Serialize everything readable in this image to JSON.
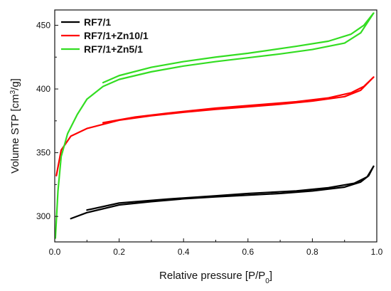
{
  "chart_data": {
    "type": "line",
    "xlabel": {
      "main": "Relative pressure [P/P",
      "subscript": "0",
      "suffix": "]"
    },
    "ylabel": {
      "main": "Volume STP [cm",
      "superscript": "3",
      "suffix": "/g]"
    },
    "xlim": [
      0.0,
      1.0
    ],
    "ylim": [
      280,
      462
    ],
    "x_ticks": [
      "0.0",
      "0.2",
      "0.4",
      "0.6",
      "0.8",
      "1.0"
    ],
    "y_ticks": [
      "300",
      "350",
      "400",
      "450"
    ],
    "legend_position": "top-left",
    "grid": false,
    "series": [
      {
        "name": "RF7/1",
        "color": "#000000",
        "adsorption": [
          [
            0.05,
            298.3
          ],
          [
            0.1,
            303.0
          ],
          [
            0.2,
            309.0
          ],
          [
            0.3,
            311.6
          ],
          [
            0.4,
            313.8
          ],
          [
            0.5,
            315.4
          ],
          [
            0.6,
            316.7
          ],
          [
            0.7,
            318.0
          ],
          [
            0.8,
            320.0
          ],
          [
            0.9,
            323.0
          ],
          [
            0.95,
            327.0
          ],
          [
            0.975,
            332.0
          ],
          [
            0.99,
            339.3
          ]
        ],
        "desorption": [
          [
            0.99,
            339.3
          ],
          [
            0.97,
            331.0
          ],
          [
            0.93,
            326.0
          ],
          [
            0.85,
            322.5
          ],
          [
            0.75,
            320.0
          ],
          [
            0.6,
            318.0
          ],
          [
            0.5,
            316.2
          ],
          [
            0.35,
            313.6
          ],
          [
            0.2,
            310.5
          ],
          [
            0.1,
            305.0
          ]
        ]
      },
      {
        "name": "RF7/1+Zn10/1",
        "color": "#ff0000",
        "adsorption": [
          [
            0.005,
            332.0
          ],
          [
            0.02,
            352.0
          ],
          [
            0.05,
            363.0
          ],
          [
            0.1,
            369.0
          ],
          [
            0.2,
            375.5
          ],
          [
            0.3,
            379.0
          ],
          [
            0.4,
            381.7
          ],
          [
            0.5,
            384.0
          ],
          [
            0.6,
            386.0
          ],
          [
            0.7,
            388.0
          ],
          [
            0.8,
            390.5
          ],
          [
            0.9,
            394.0
          ],
          [
            0.95,
            399.0
          ],
          [
            0.99,
            409.3
          ]
        ],
        "desorption": [
          [
            0.99,
            409.3
          ],
          [
            0.96,
            402.0
          ],
          [
            0.92,
            397.0
          ],
          [
            0.85,
            393.0
          ],
          [
            0.75,
            390.0
          ],
          [
            0.65,
            388.0
          ],
          [
            0.5,
            385.0
          ],
          [
            0.35,
            381.0
          ],
          [
            0.25,
            378.0
          ],
          [
            0.15,
            373.5
          ]
        ]
      },
      {
        "name": "RF7/1+Zn5/1",
        "color": "#33dd22",
        "adsorption": [
          [
            0.002,
            283.0
          ],
          [
            0.01,
            320.0
          ],
          [
            0.02,
            347.0
          ],
          [
            0.04,
            365.0
          ],
          [
            0.07,
            380.0
          ],
          [
            0.1,
            392.0
          ],
          [
            0.15,
            402.0
          ],
          [
            0.2,
            407.5
          ],
          [
            0.3,
            413.5
          ],
          [
            0.4,
            418.0
          ],
          [
            0.5,
            421.5
          ],
          [
            0.6,
            424.5
          ],
          [
            0.7,
            427.5
          ],
          [
            0.8,
            431.0
          ],
          [
            0.9,
            436.0
          ],
          [
            0.95,
            444.0
          ],
          [
            0.99,
            459.5
          ]
        ],
        "desorption": [
          [
            0.99,
            459.5
          ],
          [
            0.96,
            450.0
          ],
          [
            0.92,
            443.0
          ],
          [
            0.85,
            437.5
          ],
          [
            0.75,
            433.5
          ],
          [
            0.6,
            428.0
          ],
          [
            0.5,
            425.0
          ],
          [
            0.4,
            421.5
          ],
          [
            0.3,
            417.0
          ],
          [
            0.2,
            410.5
          ],
          [
            0.15,
            405.0
          ]
        ]
      }
    ]
  }
}
